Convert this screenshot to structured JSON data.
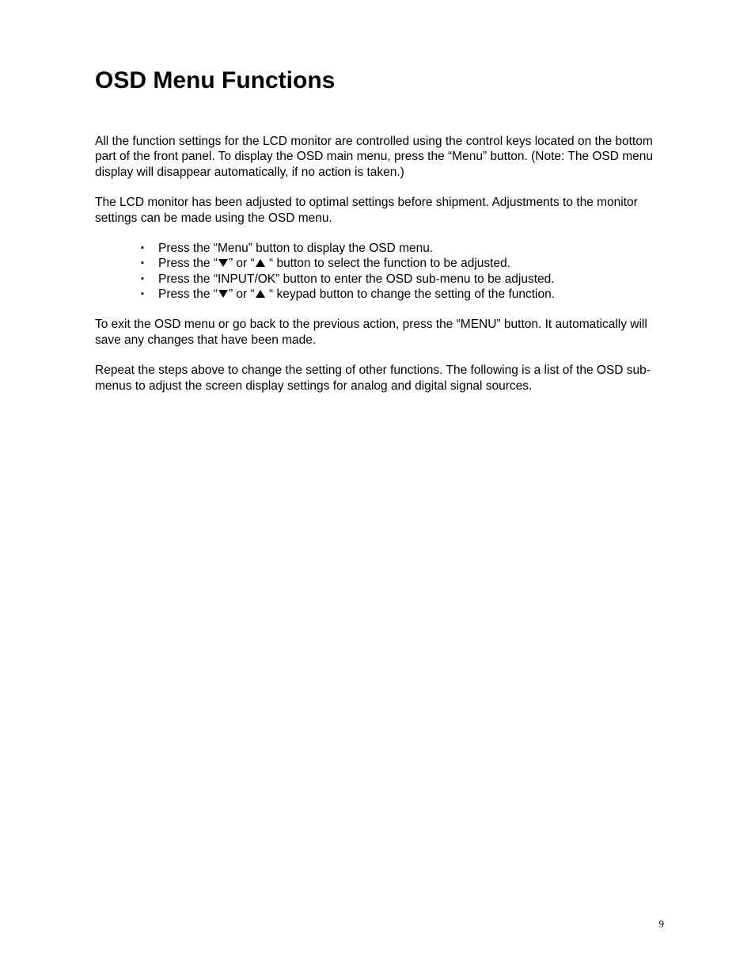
{
  "title": "OSD Menu Functions",
  "paragraphs": {
    "p1": "All the function settings for the LCD monitor are controlled using the control keys located on the bottom part of the front panel. To display the OSD main menu, press the “Menu” button. (Note: The OSD menu display will disappear automatically, if no action is taken.)",
    "p2": "The LCD monitor has been adjusted to optimal settings before shipment. Adjustments to the monitor settings can be made using the OSD menu.",
    "p3": "To exit the OSD menu or go back to the previous action, press the “MENU” button. It automatically will save any changes that have been made.",
    "p4": "Repeat the steps above to change the setting of other functions. The following is a list of the OSD sub-menus to adjust the screen display settings for analog and digital signal sources."
  },
  "bullets": {
    "b1": "Press the “Menu” button to display the OSD menu.",
    "b2_pre": "Press the “",
    "b2_mid": "” or “",
    "b2_post": " “ button to select the function to be adjusted.",
    "b3": "Press the “INPUT/OK” button to enter the OSD sub-menu to be adjusted.",
    "b4_pre": "Press the “",
    "b4_mid": "” or “",
    "b4_post": " “ keypad button to change the setting of the function."
  },
  "pageNumber": "9",
  "colors": {
    "background": "#ffffff",
    "text": "#000000"
  },
  "typography": {
    "title_fontsize": 30,
    "body_fontsize": 15.5,
    "pagenum_fontsize": 13,
    "font_family": "Arial"
  }
}
